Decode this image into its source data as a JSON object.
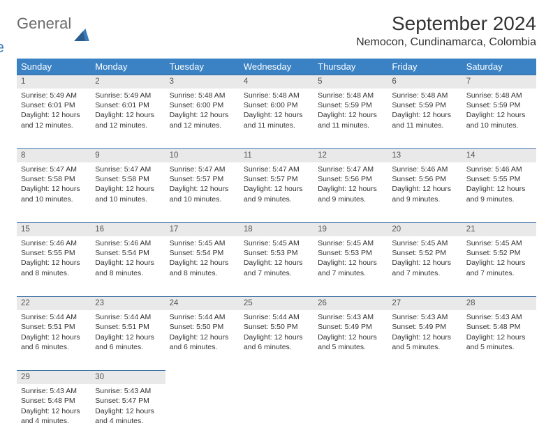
{
  "logo": {
    "part1": "General",
    "part2": "Blue"
  },
  "header": {
    "month_title": "September 2024",
    "location": "Nemocon, Cundinamarca, Colombia"
  },
  "colors": {
    "header_bg": "#3a82c4",
    "header_text": "#ffffff",
    "daynum_bg": "#e9e9e9",
    "daynum_border": "#3a6ea5",
    "text": "#333333",
    "logo_gray": "#6b6b6b",
    "logo_blue": "#3a7dbd"
  },
  "weekdays": [
    "Sunday",
    "Monday",
    "Tuesday",
    "Wednesday",
    "Thursday",
    "Friday",
    "Saturday"
  ],
  "weeks": [
    [
      {
        "d": "1",
        "sr": "Sunrise: 5:49 AM",
        "ss": "Sunset: 6:01 PM",
        "dl1": "Daylight: 12 hours",
        "dl2": "and 12 minutes."
      },
      {
        "d": "2",
        "sr": "Sunrise: 5:49 AM",
        "ss": "Sunset: 6:01 PM",
        "dl1": "Daylight: 12 hours",
        "dl2": "and 12 minutes."
      },
      {
        "d": "3",
        "sr": "Sunrise: 5:48 AM",
        "ss": "Sunset: 6:00 PM",
        "dl1": "Daylight: 12 hours",
        "dl2": "and 12 minutes."
      },
      {
        "d": "4",
        "sr": "Sunrise: 5:48 AM",
        "ss": "Sunset: 6:00 PM",
        "dl1": "Daylight: 12 hours",
        "dl2": "and 11 minutes."
      },
      {
        "d": "5",
        "sr": "Sunrise: 5:48 AM",
        "ss": "Sunset: 5:59 PM",
        "dl1": "Daylight: 12 hours",
        "dl2": "and 11 minutes."
      },
      {
        "d": "6",
        "sr": "Sunrise: 5:48 AM",
        "ss": "Sunset: 5:59 PM",
        "dl1": "Daylight: 12 hours",
        "dl2": "and 11 minutes."
      },
      {
        "d": "7",
        "sr": "Sunrise: 5:48 AM",
        "ss": "Sunset: 5:59 PM",
        "dl1": "Daylight: 12 hours",
        "dl2": "and 10 minutes."
      }
    ],
    [
      {
        "d": "8",
        "sr": "Sunrise: 5:47 AM",
        "ss": "Sunset: 5:58 PM",
        "dl1": "Daylight: 12 hours",
        "dl2": "and 10 minutes."
      },
      {
        "d": "9",
        "sr": "Sunrise: 5:47 AM",
        "ss": "Sunset: 5:58 PM",
        "dl1": "Daylight: 12 hours",
        "dl2": "and 10 minutes."
      },
      {
        "d": "10",
        "sr": "Sunrise: 5:47 AM",
        "ss": "Sunset: 5:57 PM",
        "dl1": "Daylight: 12 hours",
        "dl2": "and 10 minutes."
      },
      {
        "d": "11",
        "sr": "Sunrise: 5:47 AM",
        "ss": "Sunset: 5:57 PM",
        "dl1": "Daylight: 12 hours",
        "dl2": "and 9 minutes."
      },
      {
        "d": "12",
        "sr": "Sunrise: 5:47 AM",
        "ss": "Sunset: 5:56 PM",
        "dl1": "Daylight: 12 hours",
        "dl2": "and 9 minutes."
      },
      {
        "d": "13",
        "sr": "Sunrise: 5:46 AM",
        "ss": "Sunset: 5:56 PM",
        "dl1": "Daylight: 12 hours",
        "dl2": "and 9 minutes."
      },
      {
        "d": "14",
        "sr": "Sunrise: 5:46 AM",
        "ss": "Sunset: 5:55 PM",
        "dl1": "Daylight: 12 hours",
        "dl2": "and 9 minutes."
      }
    ],
    [
      {
        "d": "15",
        "sr": "Sunrise: 5:46 AM",
        "ss": "Sunset: 5:55 PM",
        "dl1": "Daylight: 12 hours",
        "dl2": "and 8 minutes."
      },
      {
        "d": "16",
        "sr": "Sunrise: 5:46 AM",
        "ss": "Sunset: 5:54 PM",
        "dl1": "Daylight: 12 hours",
        "dl2": "and 8 minutes."
      },
      {
        "d": "17",
        "sr": "Sunrise: 5:45 AM",
        "ss": "Sunset: 5:54 PM",
        "dl1": "Daylight: 12 hours",
        "dl2": "and 8 minutes."
      },
      {
        "d": "18",
        "sr": "Sunrise: 5:45 AM",
        "ss": "Sunset: 5:53 PM",
        "dl1": "Daylight: 12 hours",
        "dl2": "and 7 minutes."
      },
      {
        "d": "19",
        "sr": "Sunrise: 5:45 AM",
        "ss": "Sunset: 5:53 PM",
        "dl1": "Daylight: 12 hours",
        "dl2": "and 7 minutes."
      },
      {
        "d": "20",
        "sr": "Sunrise: 5:45 AM",
        "ss": "Sunset: 5:52 PM",
        "dl1": "Daylight: 12 hours",
        "dl2": "and 7 minutes."
      },
      {
        "d": "21",
        "sr": "Sunrise: 5:45 AM",
        "ss": "Sunset: 5:52 PM",
        "dl1": "Daylight: 12 hours",
        "dl2": "and 7 minutes."
      }
    ],
    [
      {
        "d": "22",
        "sr": "Sunrise: 5:44 AM",
        "ss": "Sunset: 5:51 PM",
        "dl1": "Daylight: 12 hours",
        "dl2": "and 6 minutes."
      },
      {
        "d": "23",
        "sr": "Sunrise: 5:44 AM",
        "ss": "Sunset: 5:51 PM",
        "dl1": "Daylight: 12 hours",
        "dl2": "and 6 minutes."
      },
      {
        "d": "24",
        "sr": "Sunrise: 5:44 AM",
        "ss": "Sunset: 5:50 PM",
        "dl1": "Daylight: 12 hours",
        "dl2": "and 6 minutes."
      },
      {
        "d": "25",
        "sr": "Sunrise: 5:44 AM",
        "ss": "Sunset: 5:50 PM",
        "dl1": "Daylight: 12 hours",
        "dl2": "and 6 minutes."
      },
      {
        "d": "26",
        "sr": "Sunrise: 5:43 AM",
        "ss": "Sunset: 5:49 PM",
        "dl1": "Daylight: 12 hours",
        "dl2": "and 5 minutes."
      },
      {
        "d": "27",
        "sr": "Sunrise: 5:43 AM",
        "ss": "Sunset: 5:49 PM",
        "dl1": "Daylight: 12 hours",
        "dl2": "and 5 minutes."
      },
      {
        "d": "28",
        "sr": "Sunrise: 5:43 AM",
        "ss": "Sunset: 5:48 PM",
        "dl1": "Daylight: 12 hours",
        "dl2": "and 5 minutes."
      }
    ],
    [
      {
        "d": "29",
        "sr": "Sunrise: 5:43 AM",
        "ss": "Sunset: 5:48 PM",
        "dl1": "Daylight: 12 hours",
        "dl2": "and 4 minutes."
      },
      {
        "d": "30",
        "sr": "Sunrise: 5:43 AM",
        "ss": "Sunset: 5:47 PM",
        "dl1": "Daylight: 12 hours",
        "dl2": "and 4 minutes."
      },
      null,
      null,
      null,
      null,
      null
    ]
  ]
}
